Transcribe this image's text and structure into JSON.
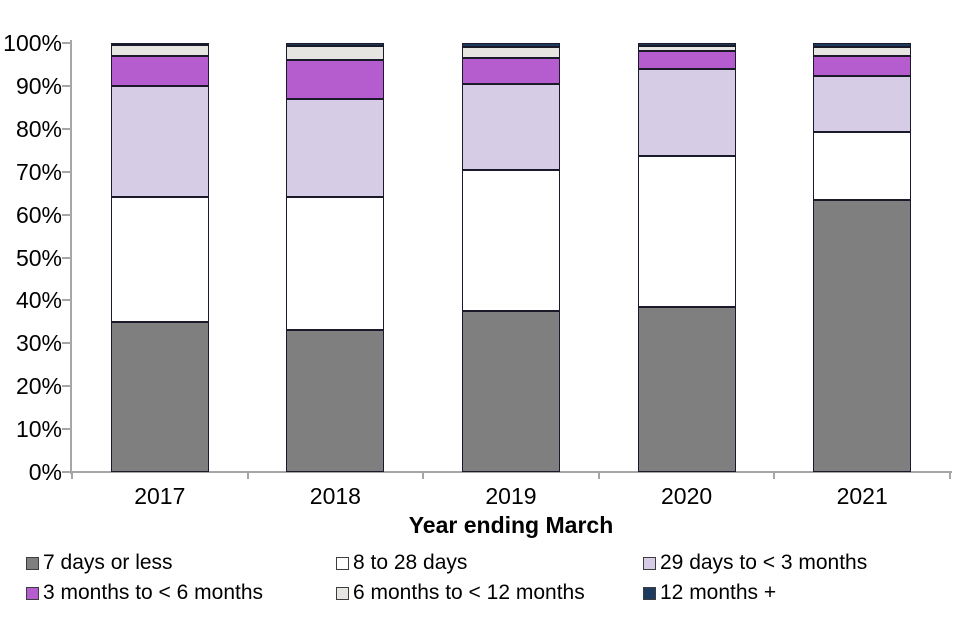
{
  "chart_data": {
    "type": "bar",
    "stacked": true,
    "orientation": "vertical",
    "title": "",
    "xlabel": "Year ending March",
    "ylabel": "",
    "ylim": [
      0,
      100
    ],
    "y_tick_labels": [
      "0%",
      "10%",
      "20%",
      "30%",
      "40%",
      "50%",
      "60%",
      "70%",
      "80%",
      "90%",
      "100%"
    ],
    "grid": false,
    "legend_position": "bottom",
    "categories": [
      "2017",
      "2018",
      "2019",
      "2020",
      "2021"
    ],
    "series": [
      {
        "name": "7 days or less",
        "color": "#7f7f7f",
        "values": [
          35.0,
          33.0,
          37.5,
          38.5,
          63.4
        ]
      },
      {
        "name": "8 to 28 days",
        "color": "#ffffff",
        "values": [
          29.0,
          31.0,
          33.0,
          35.2,
          15.9
        ]
      },
      {
        "name": "29 days to < 3 months",
        "color": "#d7cce6",
        "values": [
          26.0,
          23.0,
          20.0,
          20.2,
          13.0
        ]
      },
      {
        "name": "3 months to < 6 months",
        "color": "#b55ccf",
        "values": [
          7.0,
          9.0,
          6.0,
          4.3,
          4.7
        ]
      },
      {
        "name": "6 months to < 12 months",
        "color": "#e6e5e1",
        "values": [
          2.5,
          3.3,
          2.6,
          1.1,
          2.1
        ]
      },
      {
        "name": "12 months +",
        "color": "#1f3a5f",
        "values": [
          0.5,
          0.7,
          0.9,
          0.7,
          0.9
        ]
      }
    ],
    "axis_color": "#a6a6a6",
    "segment_border_color": "#1a1a2b"
  }
}
